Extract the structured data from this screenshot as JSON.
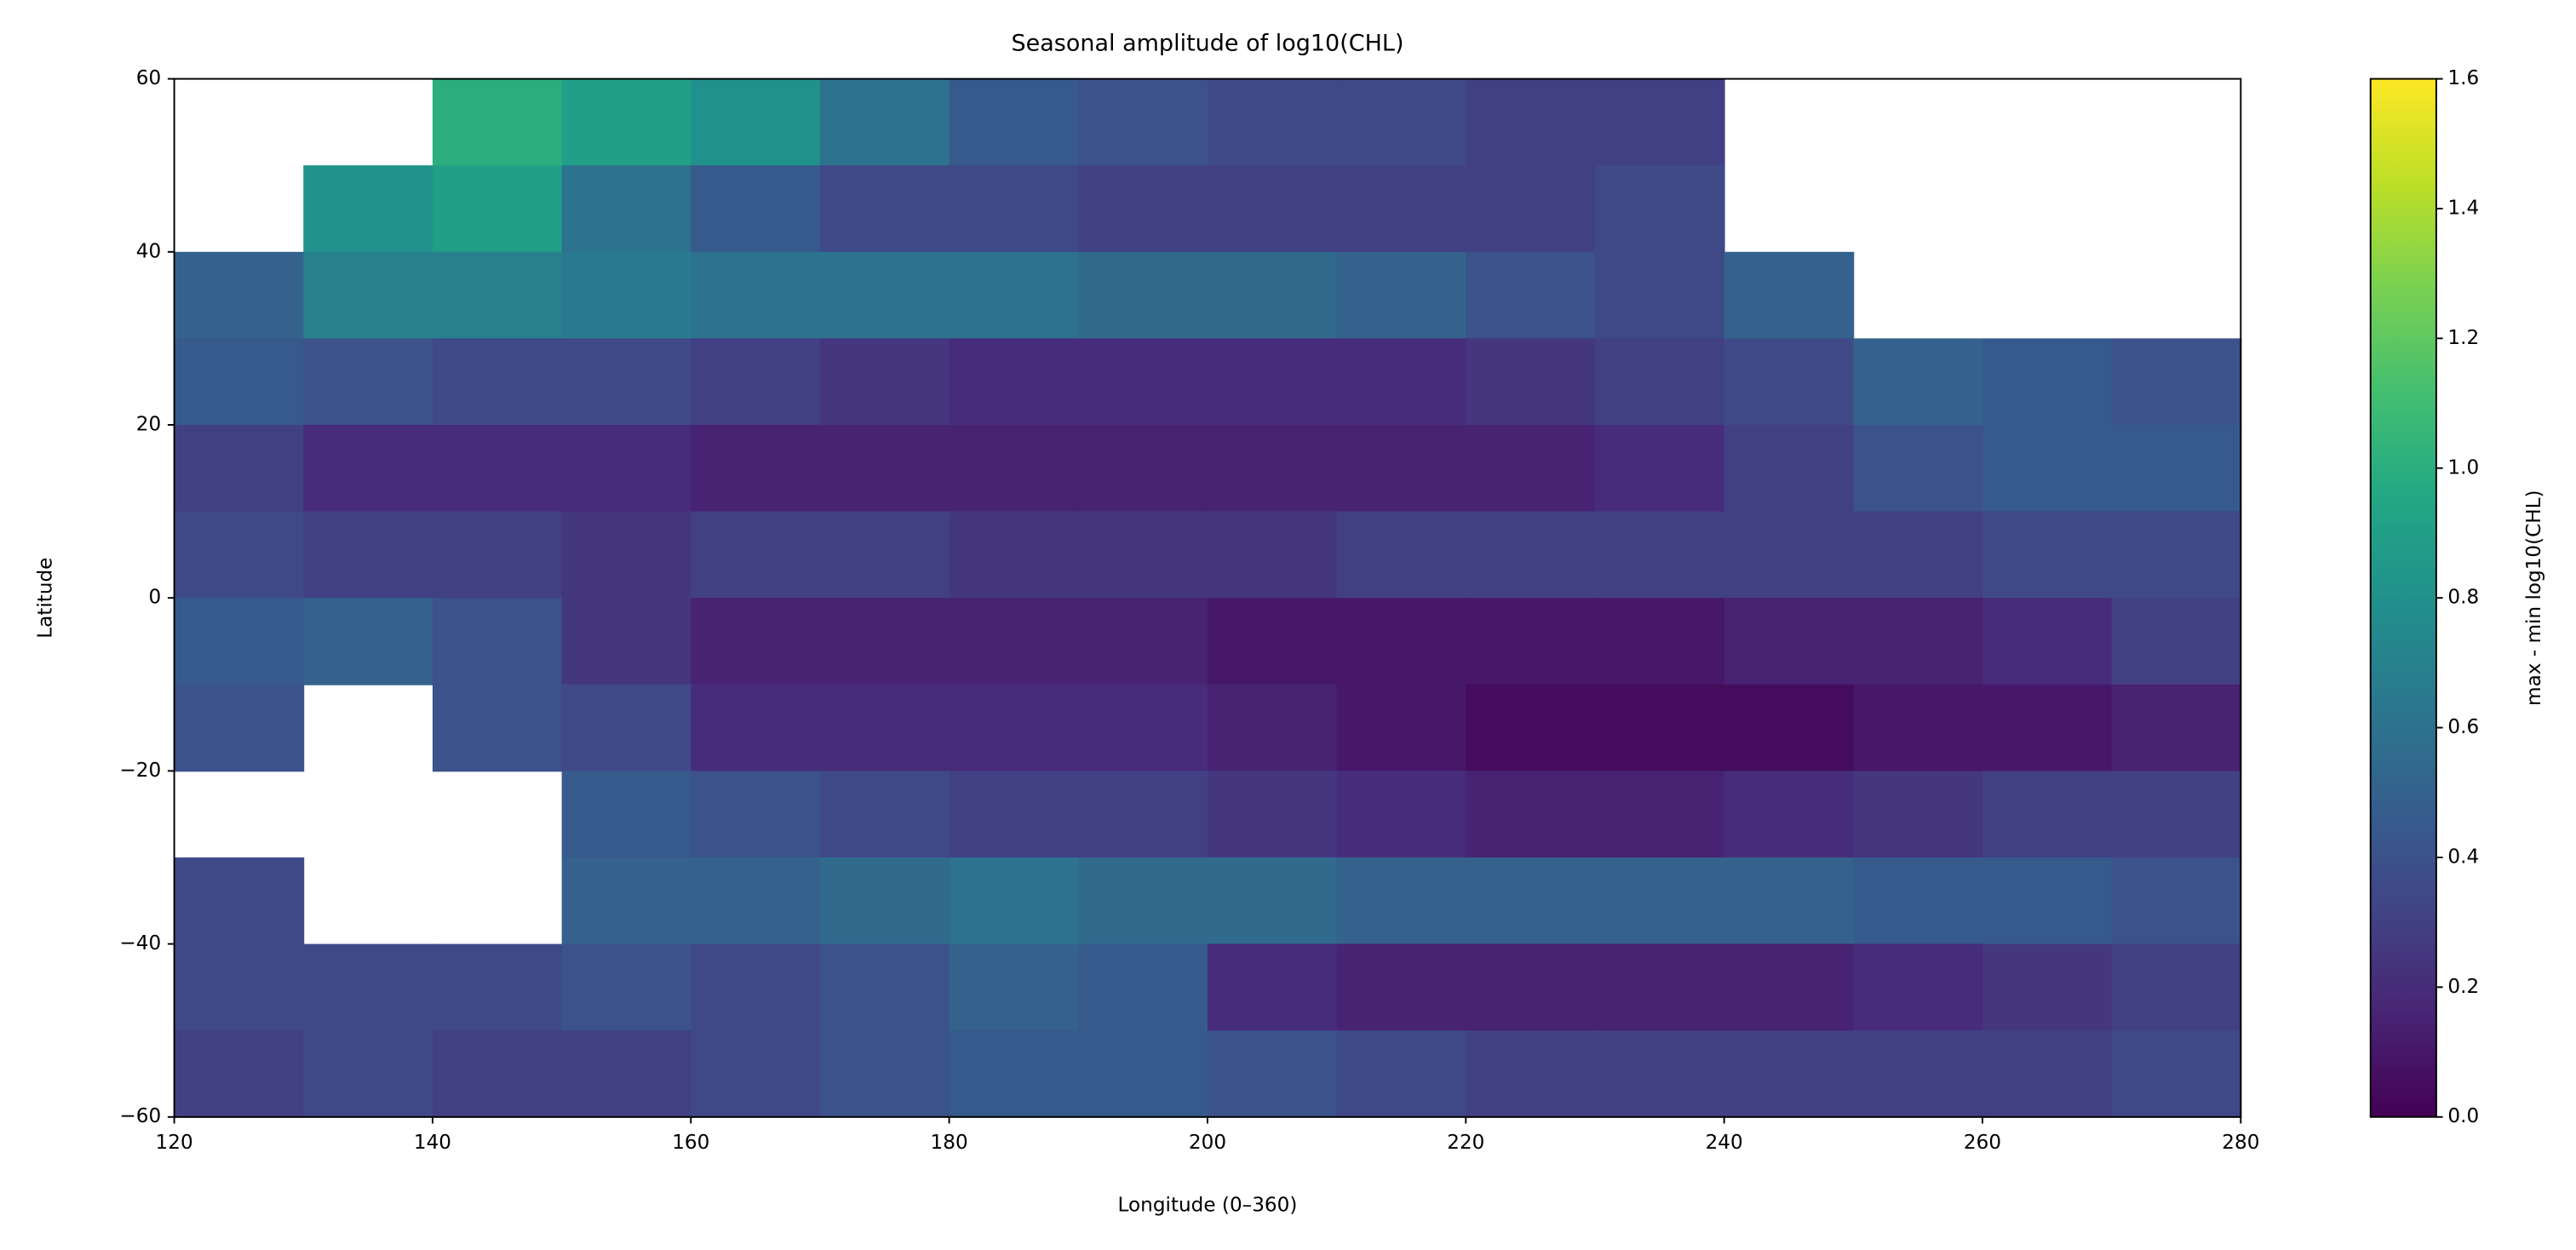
{
  "chart_data": {
    "type": "heatmap",
    "title": "Seasonal amplitude of log10(CHL)",
    "xlabel": "Longitude (0–360)",
    "ylabel": "Latitude",
    "colorbar_label": "max - min log10(CHL)",
    "colormap": "viridis",
    "clim": [
      0,
      1.6
    ],
    "xlim": [
      120,
      280
    ],
    "ylim": [
      -60,
      60
    ],
    "xticks": [
      120,
      140,
      160,
      180,
      200,
      220,
      240,
      260,
      280
    ],
    "yticks": [
      {
        "value": -60,
        "label": "−60"
      },
      {
        "value": -40,
        "label": "−40"
      },
      {
        "value": -20,
        "label": "−20"
      },
      0,
      20,
      40,
      60
    ],
    "cticks": [
      {
        "value": 0,
        "label": "0.0"
      },
      {
        "value": 0.2,
        "label": "0.2"
      },
      {
        "value": 0.4,
        "label": "0.4"
      },
      {
        "value": 0.6,
        "label": "0.6"
      },
      {
        "value": 0.8,
        "label": "0.8"
      },
      {
        "value": 1,
        "label": "1.0"
      },
      {
        "value": 1.2,
        "label": "1.2"
      },
      {
        "value": 1.4,
        "label": "1.4"
      },
      {
        "value": 1.6,
        "label": "1.6"
      }
    ],
    "x": [
      125,
      135,
      145,
      155,
      165,
      175,
      185,
      195,
      205,
      215,
      225,
      235,
      245,
      255,
      265,
      275
    ],
    "y": [
      55,
      45,
      35,
      25,
      15,
      5,
      -5,
      -15,
      -25,
      -35,
      -45,
      -55
    ],
    "z": [
      [
        null,
        null,
        1.0,
        0.9,
        0.8,
        0.6,
        0.45,
        0.4,
        0.35,
        0.35,
        0.3,
        0.3,
        null,
        null,
        null,
        null
      ],
      [
        null,
        0.8,
        0.9,
        0.6,
        0.45,
        0.35,
        0.35,
        0.3,
        0.3,
        0.3,
        0.3,
        0.35,
        null,
        null,
        null,
        null
      ],
      [
        0.5,
        0.7,
        0.7,
        0.65,
        0.6,
        0.6,
        0.6,
        0.55,
        0.55,
        0.5,
        0.4,
        0.35,
        0.5,
        null,
        null,
        null
      ],
      [
        0.45,
        0.4,
        0.35,
        0.35,
        0.3,
        0.25,
        0.2,
        0.2,
        0.2,
        0.2,
        0.25,
        0.3,
        0.35,
        0.5,
        0.45,
        0.4
      ],
      [
        0.3,
        0.2,
        0.2,
        0.2,
        0.15,
        0.15,
        0.15,
        0.15,
        0.15,
        0.15,
        0.15,
        0.2,
        0.3,
        0.4,
        0.45,
        0.45
      ],
      [
        0.35,
        0.3,
        0.3,
        0.25,
        0.3,
        0.3,
        0.25,
        0.25,
        0.25,
        0.3,
        0.3,
        0.3,
        0.3,
        0.3,
        0.35,
        0.35
      ],
      [
        0.45,
        0.5,
        0.4,
        0.25,
        0.15,
        0.15,
        0.15,
        0.15,
        0.1,
        0.1,
        0.1,
        0.1,
        0.15,
        0.15,
        0.2,
        0.3
      ],
      [
        0.4,
        null,
        0.4,
        0.35,
        0.2,
        0.2,
        0.2,
        0.2,
        0.15,
        0.1,
        0.05,
        0.05,
        0.05,
        0.1,
        0.1,
        0.15
      ],
      [
        null,
        null,
        null,
        0.45,
        0.4,
        0.35,
        0.3,
        0.3,
        0.25,
        0.2,
        0.15,
        0.15,
        0.2,
        0.25,
        0.3,
        0.3
      ],
      [
        0.35,
        null,
        null,
        0.5,
        0.5,
        0.55,
        0.6,
        0.55,
        0.55,
        0.5,
        0.5,
        0.5,
        0.5,
        0.45,
        0.45,
        0.4
      ],
      [
        0.35,
        0.35,
        0.35,
        0.4,
        0.35,
        0.4,
        0.5,
        0.45,
        0.2,
        0.15,
        0.15,
        0.15,
        0.15,
        0.2,
        0.25,
        0.3
      ],
      [
        0.3,
        0.35,
        0.3,
        0.3,
        0.35,
        0.4,
        0.45,
        0.45,
        0.4,
        0.35,
        0.3,
        0.3,
        0.3,
        0.3,
        0.3,
        0.35
      ]
    ]
  }
}
